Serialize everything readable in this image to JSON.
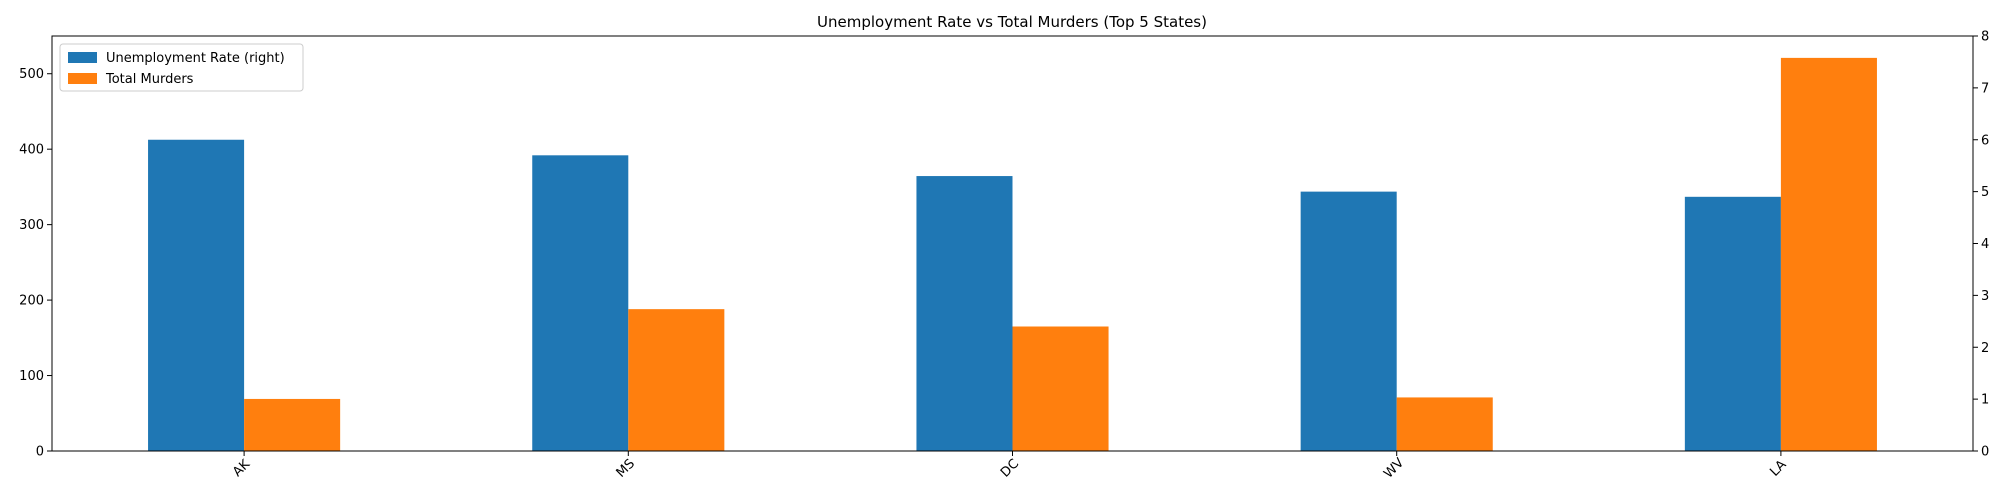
{
  "chart_data": {
    "type": "bar",
    "title": "Unemployment Rate vs Total Murders (Top 5 States)",
    "categories": [
      "AK",
      "MS",
      "DC",
      "WV",
      "LA"
    ],
    "series": [
      {
        "name": "Unemployment Rate (right)",
        "axis": "right",
        "color": "#1f77b4",
        "values": [
          6.0,
          5.7,
          5.3,
          5.0,
          4.9
        ]
      },
      {
        "name": "Total Murders",
        "axis": "left",
        "color": "#ff7f0e",
        "values": [
          69,
          188,
          165,
          71,
          521
        ]
      }
    ],
    "y_left": {
      "lim": [
        0,
        550
      ],
      "ticks": [
        0,
        100,
        200,
        300,
        400,
        500
      ]
    },
    "y_right": {
      "lim": [
        0,
        8
      ],
      "ticks": [
        0,
        1,
        2,
        3,
        4,
        5,
        6,
        7,
        8
      ]
    },
    "legend": "top-left",
    "grid": false
  }
}
